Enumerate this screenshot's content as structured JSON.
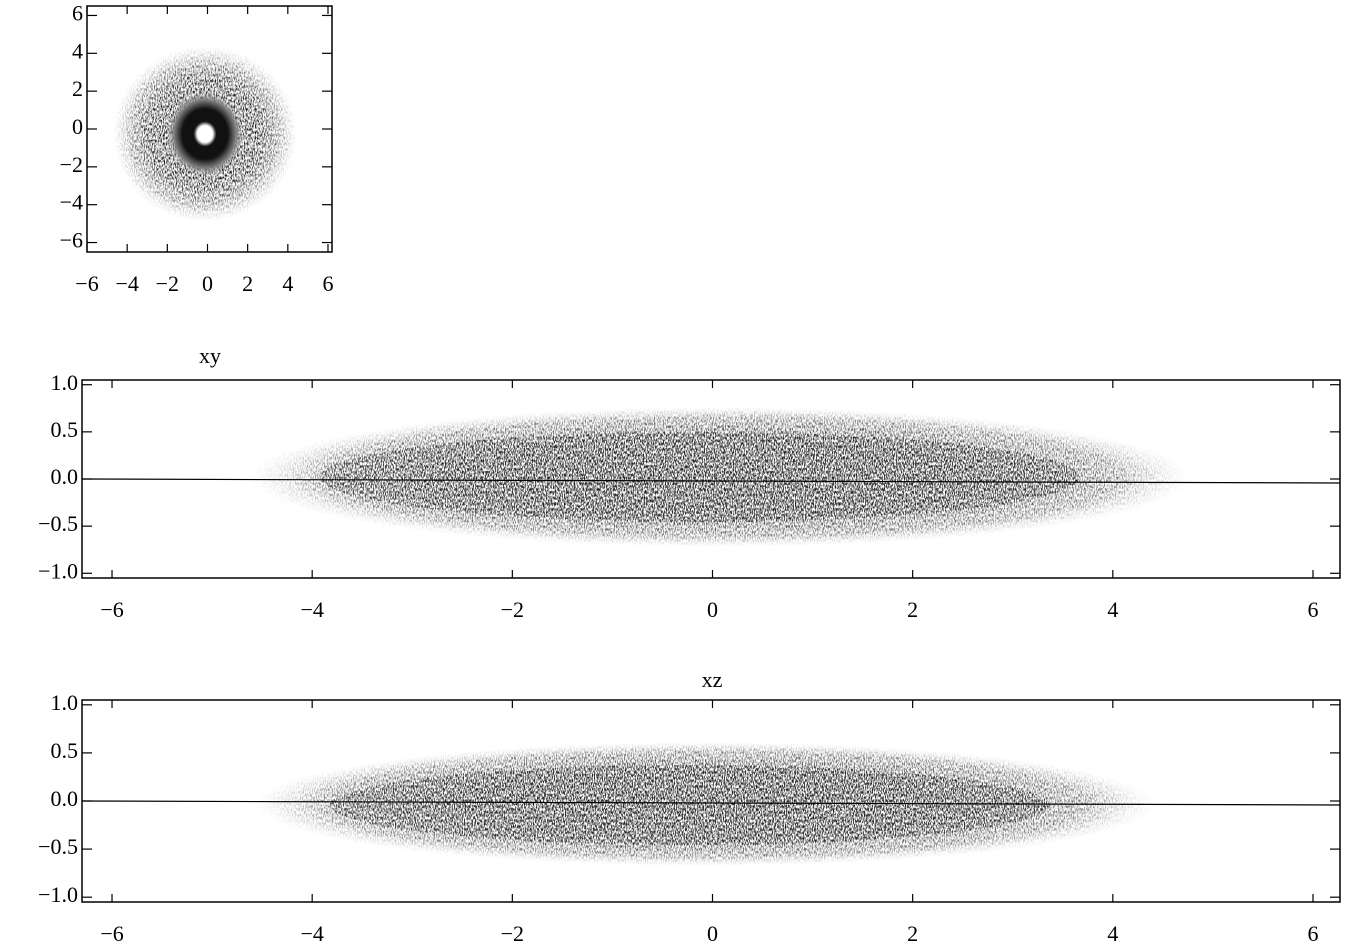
{
  "chart_data": [
    {
      "type": "density",
      "xlim": [
        -6,
        6.2
      ],
      "ylim": [
        -6.5,
        6.5
      ],
      "xticks": [
        {
          "value": -6,
          "label": "−6"
        },
        {
          "value": -4,
          "label": "−4"
        },
        {
          "value": -2,
          "label": "−2"
        },
        0,
        2,
        4,
        6
      ],
      "yticks": [
        {
          "value": -6,
          "label": "−6"
        },
        {
          "value": -4,
          "label": "−4"
        },
        {
          "value": -2,
          "label": "−2"
        },
        0,
        2,
        4,
        6
      ]
    },
    {
      "type": "density",
      "title": "xy",
      "xlim": [
        -6.3,
        6.27
      ],
      "ylim": [
        -1.05,
        1.05
      ],
      "xticks": [
        {
          "value": -6,
          "label": "−6"
        },
        {
          "value": -4,
          "label": "−4"
        },
        {
          "value": -2,
          "label": "−2"
        },
        0,
        2,
        4,
        6
      ],
      "yticks": [
        {
          "value": -1,
          "label": "−1.0"
        },
        {
          "value": -0.5,
          "label": "−0.5"
        },
        {
          "value": 0,
          "label": "0.0"
        },
        0.5,
        {
          "value": 1,
          "label": "1.0"
        }
      ]
    },
    {
      "type": "density",
      "title": "xz",
      "xlim": [
        -6.3,
        6.27
      ],
      "ylim": [
        -1.05,
        1.05
      ],
      "xticks": [
        {
          "value": -6,
          "label": "−6"
        },
        {
          "value": -4,
          "label": "−4"
        },
        {
          "value": -2,
          "label": "−2"
        },
        0,
        2,
        4,
        6
      ],
      "yticks": [
        {
          "value": -1,
          "label": "−1.0"
        },
        {
          "value": -0.5,
          "label": "−0.5"
        },
        {
          "value": 0,
          "label": "0.0"
        },
        0.5,
        {
          "value": 1,
          "label": "1.0"
        }
      ]
    }
  ]
}
